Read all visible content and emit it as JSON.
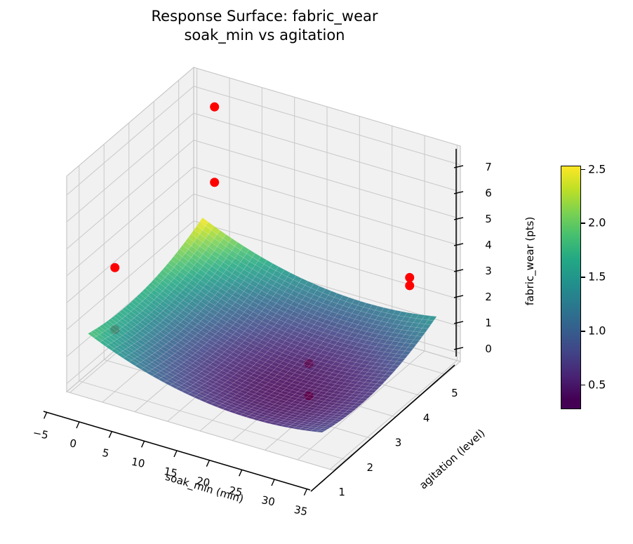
{
  "figure": {
    "background": "#ffffff"
  },
  "chart_data": {
    "type": "3d_surface_with_scatter",
    "title": "Response Surface: fabric_wear\nsoak_min vs agitation",
    "axes": {
      "x": {
        "label": "soak_min (min)",
        "range": [
          -5.5,
          35.5
        ],
        "tick_values": [
          -5,
          0,
          5,
          10,
          15,
          20,
          25,
          30,
          35
        ],
        "tick_labels": [
          "−5",
          "0",
          "5",
          "10",
          "15",
          "20",
          "25",
          "30",
          "35"
        ]
      },
      "y": {
        "label": "agitation (level)",
        "range": [
          0.5,
          5.6
        ],
        "tick_values": [
          1,
          2,
          3,
          4,
          5
        ],
        "tick_labels": [
          "1",
          "2",
          "3",
          "4",
          "5"
        ]
      },
      "z": {
        "label": "fabric_wear (pts)",
        "range": [
          -0.3,
          7.7
        ],
        "tick_values": [
          0,
          1,
          2,
          3,
          4,
          5,
          6,
          7
        ],
        "tick_labels": [
          "0",
          "1",
          "2",
          "3",
          "4",
          "5",
          "6",
          "7"
        ]
      }
    },
    "view": {
      "elev": 30,
      "azim": -60
    },
    "surface": {
      "model": "fabric_wear = z0 + cx*(soak_min - s0)^2 + ca*(agitation - a0)^2",
      "coeffs": {
        "z0": 0.3,
        "cx": 0.0022,
        "s0": 22,
        "ca": 0.09,
        "a0": 2.2
      },
      "soak_range": [
        -3,
        33
      ],
      "agitation_range": [
        0.7,
        5.3
      ],
      "grid_divisions": 40,
      "alpha": 0.88,
      "colormap": "viridis",
      "color_limits": [
        0.27,
        2.53
      ]
    },
    "points": [
      {
        "soak_min": 0,
        "agitation": 5,
        "fabric_wear": 7.1,
        "behind_surface": false
      },
      {
        "soak_min": 0,
        "agitation": 5,
        "fabric_wear": 4.3,
        "behind_surface": false
      },
      {
        "soak_min": 0,
        "agitation": 1,
        "fabric_wear": 4.3,
        "behind_surface": false
      },
      {
        "soak_min": 0,
        "agitation": 1,
        "fabric_wear": 2.0,
        "behind_surface": true
      },
      {
        "soak_min": 30,
        "agitation": 5,
        "fabric_wear": 2.9,
        "behind_surface": false
      },
      {
        "soak_min": 30,
        "agitation": 5,
        "fabric_wear": 2.6,
        "behind_surface": false
      },
      {
        "soak_min": 26,
        "agitation": 2,
        "fabric_wear": 1.8,
        "behind_surface": true
      },
      {
        "soak_min": 26,
        "agitation": 2,
        "fabric_wear": 0.6,
        "behind_surface": true
      }
    ],
    "point_style": {
      "color": "#ff0000",
      "radius_px": 6.5
    },
    "colorbar": {
      "tick_labels": [
        "0.5",
        "1.0",
        "1.5",
        "2.0",
        "2.5"
      ],
      "tick_values": [
        0.5,
        1.0,
        1.5,
        2.0,
        2.5
      ],
      "limits": [
        0.27,
        2.53
      ]
    },
    "style": {
      "pane_color": "#f1f1f2",
      "pane_edge_color": "#c4c4c4",
      "grid_color": "#c9c9c9",
      "axis_line_color": "#000000",
      "tick_label_color": "#000000",
      "tick_font_px": 15,
      "axis_label_font_px": 15
    },
    "viridis_stops": [
      [
        0.0,
        "#440154"
      ],
      [
        0.1,
        "#482475"
      ],
      [
        0.2,
        "#414487"
      ],
      [
        0.3,
        "#355f8d"
      ],
      [
        0.4,
        "#2a788e"
      ],
      [
        0.5,
        "#21918c"
      ],
      [
        0.6,
        "#22a884"
      ],
      [
        0.7,
        "#44bf70"
      ],
      [
        0.8,
        "#7ad151"
      ],
      [
        0.9,
        "#bddf26"
      ],
      [
        1.0,
        "#fde725"
      ]
    ]
  }
}
